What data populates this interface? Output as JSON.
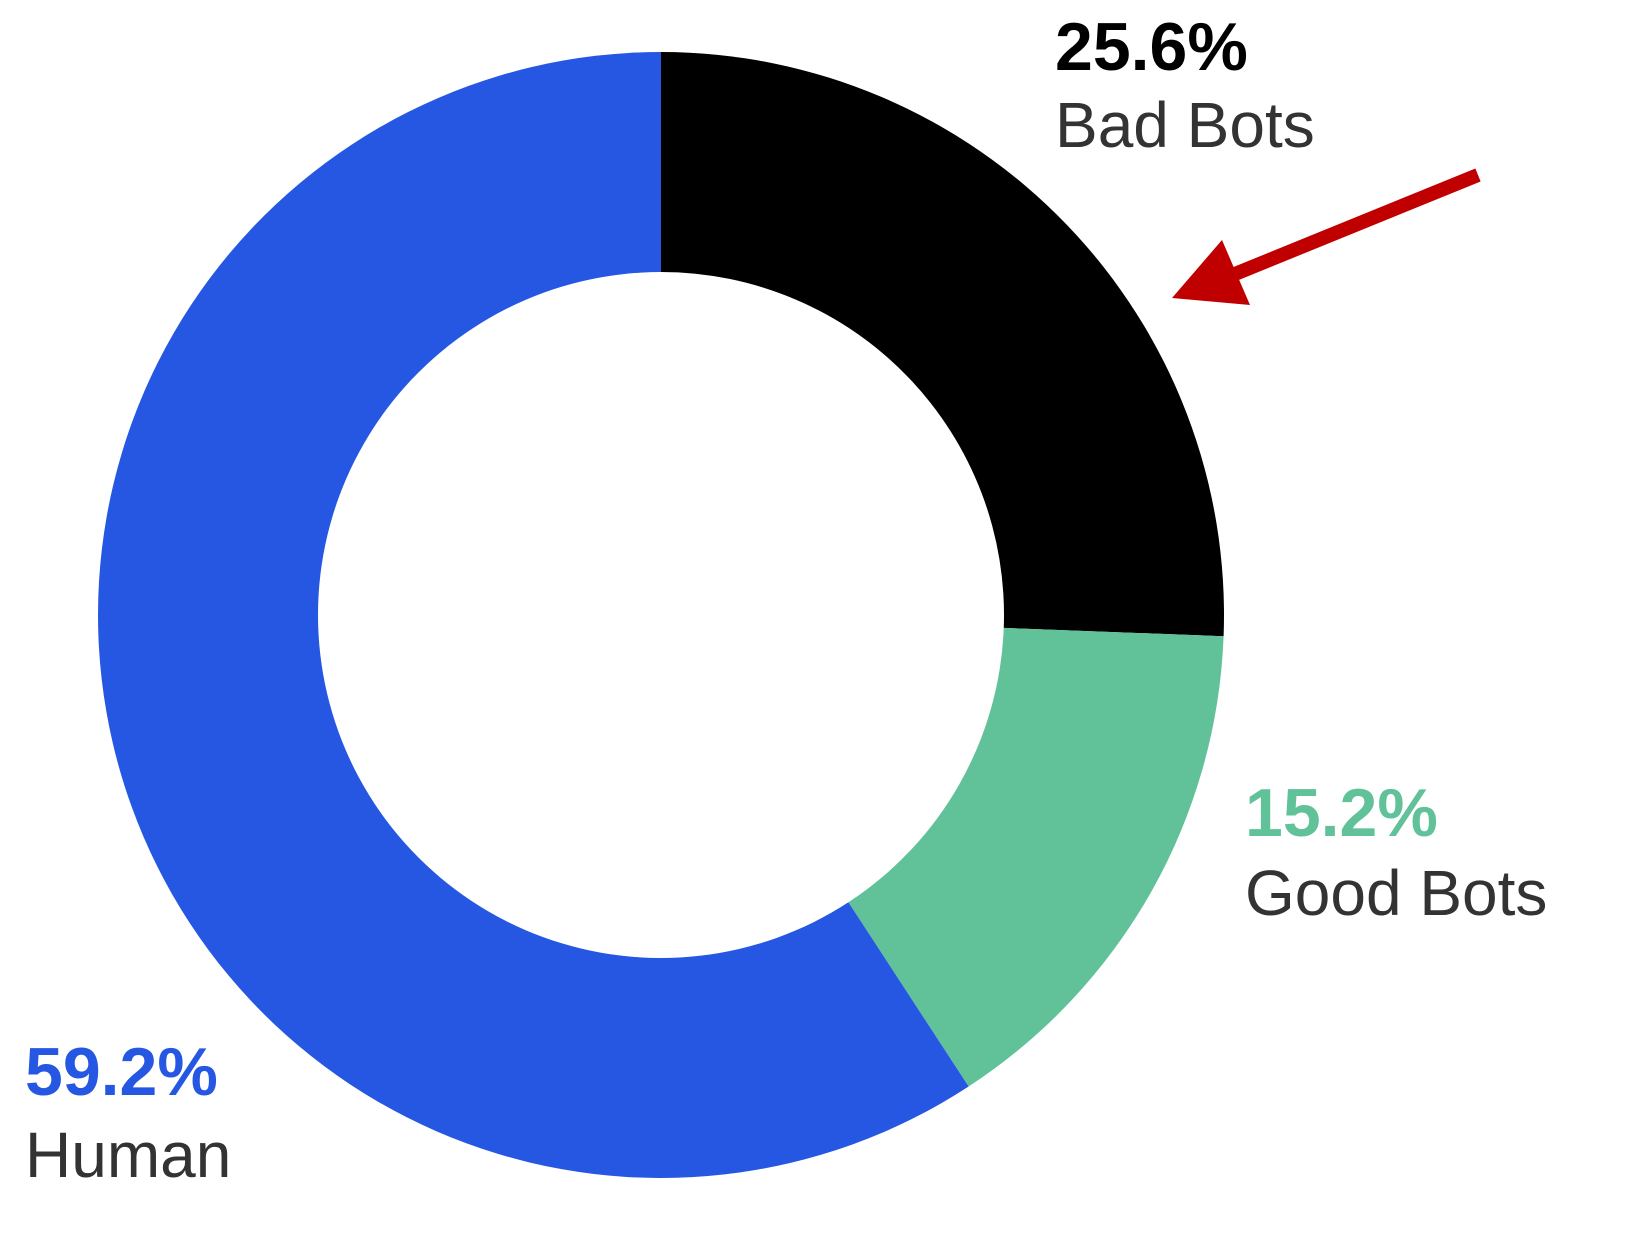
{
  "chart_data": {
    "type": "donut",
    "categories": [
      "Bad Bots",
      "Good Bots",
      "Human"
    ],
    "values": [
      25.6,
      15.2,
      59.2
    ],
    "value_labels": [
      "25.6%",
      "15.2%",
      "59.2%"
    ],
    "colors": [
      "#000000",
      "#61c29a",
      "#2557e3"
    ]
  }
}
